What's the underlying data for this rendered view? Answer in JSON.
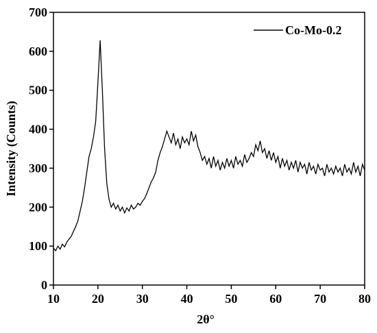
{
  "chart_data": {
    "type": "line",
    "xlabel": "2θ°",
    "ylabel": "Intensity (Counts)",
    "xlim": [
      10,
      80
    ],
    "ylim": [
      0,
      700
    ],
    "xticks": [
      10,
      20,
      30,
      40,
      50,
      60,
      70,
      80
    ],
    "yticks": [
      0,
      100,
      200,
      300,
      400,
      500,
      600,
      700
    ],
    "legend": "upper right",
    "x": [
      10,
      10.5,
      11,
      11.5,
      12,
      12.5,
      13,
      13.5,
      14,
      14.5,
      15,
      15.5,
      16,
      16.5,
      17,
      17.5,
      18,
      18.5,
      19,
      19.5,
      20,
      20.5,
      21,
      21.5,
      22,
      22.5,
      23,
      23.5,
      24,
      24.5,
      25,
      25.5,
      26,
      26.5,
      27,
      27.5,
      28,
      28.5,
      29,
      29.5,
      30,
      30.5,
      31,
      31.5,
      32,
      32.5,
      33,
      33.5,
      34,
      34.5,
      35,
      35.5,
      36,
      36.5,
      37,
      37.5,
      38,
      38.5,
      39,
      39.5,
      40,
      40.5,
      41,
      41.5,
      42,
      42.5,
      43,
      43.5,
      44,
      44.5,
      45,
      45.5,
      46,
      46.5,
      47,
      47.5,
      48,
      48.5,
      49,
      49.5,
      50,
      50.5,
      51,
      51.5,
      52,
      52.5,
      53,
      53.5,
      54,
      54.5,
      55,
      55.5,
      56,
      56.5,
      57,
      57.5,
      58,
      58.5,
      59,
      59.5,
      60,
      60.5,
      61,
      61.5,
      62,
      62.5,
      63,
      63.5,
      64,
      64.5,
      65,
      65.5,
      66,
      66.5,
      67,
      67.5,
      68,
      68.5,
      69,
      69.5,
      70,
      70.5,
      71,
      71.5,
      72,
      72.5,
      73,
      73.5,
      74,
      74.5,
      75,
      75.5,
      76,
      76.5,
      77,
      77.5,
      78,
      78.5,
      79,
      79.5,
      80
    ],
    "series": [
      {
        "name": "Co-Mo-0.2",
        "color": "#000000",
        "values": [
          95,
          88,
          100,
          92,
          105,
          98,
          110,
          118,
          125,
          138,
          150,
          165,
          190,
          215,
          250,
          290,
          330,
          350,
          380,
          420,
          520,
          628,
          500,
          350,
          260,
          220,
          200,
          210,
          195,
          205,
          190,
          200,
          185,
          198,
          190,
          205,
          195,
          200,
          210,
          205,
          215,
          222,
          235,
          250,
          265,
          275,
          290,
          320,
          340,
          355,
          375,
          395,
          380,
          365,
          390,
          360,
          375,
          350,
          380,
          365,
          375,
          360,
          395,
          370,
          385,
          355,
          340,
          320,
          330,
          310,
          325,
          300,
          330,
          305,
          320,
          295,
          315,
          300,
          325,
          305,
          320,
          300,
          330,
          310,
          320,
          305,
          335,
          315,
          325,
          340,
          330,
          360,
          345,
          370,
          340,
          350,
          325,
          345,
          320,
          340,
          315,
          330,
          300,
          325,
          305,
          320,
          295,
          315,
          300,
          320,
          290,
          315,
          300,
          310,
          285,
          315,
          295,
          305,
          285,
          310,
          295,
          300,
          280,
          310,
          290,
          300,
          285,
          305,
          290,
          300,
          280,
          310,
          290,
          300,
          285,
          315,
          290,
          305,
          280,
          310,
          295
        ]
      }
    ]
  }
}
